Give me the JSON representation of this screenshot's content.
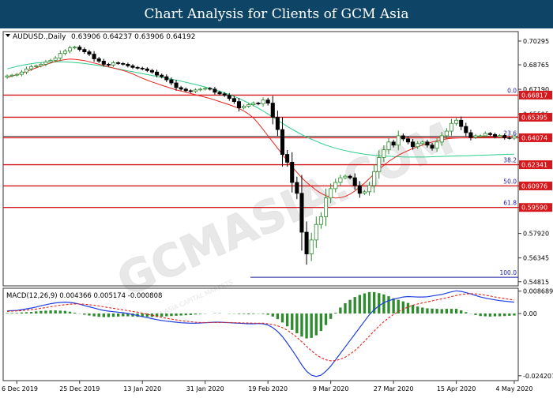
{
  "banner": {
    "title": "Chart Analysis for Clients of GCM Asia"
  },
  "watermark": {
    "text": "GCMASIA.COM",
    "subtext": "GCM ASIA CAPITAL MARKETS"
  },
  "chart_data": [
    {
      "type": "candlestick",
      "symbol_label": "AUDUSD.,Daily",
      "ohlc_label": "0.63906 0.64237 0.63906 0.64192",
      "ylim": [
        0.5465,
        0.708
      ],
      "y_ticks": [
        "0.70295",
        "0.68765",
        "0.67190",
        "0.65595",
        "0.64074",
        "0.62341",
        "0.60976",
        "0.59590",
        "0.57920",
        "0.56345",
        "0.54815"
      ],
      "x_ticks": [
        "6 Dec 2019",
        "25 Dec 2019",
        "13 Jan 2020",
        "31 Jan 2020",
        "19 Feb 2020",
        "9 Mar 2020",
        "27 Mar 2020",
        "15 Apr 2020",
        "4 May 2020"
      ],
      "n_bars": 106,
      "levels": [
        {
          "price": 0.66817,
          "label": "0.66817",
          "fib": "0.0"
        },
        {
          "price": 0.65395,
          "label": "0.65395",
          "fib": ""
        },
        {
          "price": 0.64074,
          "label": "0.64074",
          "fib": "23.6"
        },
        {
          "price": 0.62341,
          "label": "0.62341",
          "fib": "38.2"
        },
        {
          "price": 0.60976,
          "label": "0.60976",
          "fib": "50.0"
        },
        {
          "price": 0.5959,
          "label": "0.59590",
          "fib": "61.8"
        }
      ],
      "fib_100": {
        "price": 0.551,
        "label": "100.0"
      },
      "closes": [
        0.6805,
        0.681,
        0.6815,
        0.683,
        0.685,
        0.6865,
        0.687,
        0.688,
        0.6895,
        0.6905,
        0.692,
        0.695,
        0.6965,
        0.6985,
        0.699,
        0.6975,
        0.696,
        0.6945,
        0.6915,
        0.69,
        0.688,
        0.6875,
        0.689,
        0.6885,
        0.688,
        0.687,
        0.686,
        0.6855,
        0.685,
        0.684,
        0.683,
        0.681,
        0.68,
        0.678,
        0.676,
        0.673,
        0.672,
        0.671,
        0.6705,
        0.6715,
        0.672,
        0.6725,
        0.672,
        0.67,
        0.669,
        0.668,
        0.666,
        0.664,
        0.66,
        0.661,
        0.662,
        0.663,
        0.6625,
        0.665,
        0.663,
        0.654,
        0.646,
        0.63,
        0.625,
        0.612,
        0.605,
        0.58,
        0.566,
        0.575,
        0.585,
        0.59,
        0.602,
        0.608,
        0.612,
        0.615,
        0.616,
        0.615,
        0.61,
        0.605,
        0.606,
        0.61,
        0.619,
        0.628,
        0.633,
        0.638,
        0.636,
        0.642,
        0.64,
        0.638,
        0.635,
        0.637,
        0.638,
        0.636,
        0.634,
        0.638,
        0.642,
        0.645,
        0.65,
        0.652,
        0.648,
        0.644,
        0.641,
        0.642,
        0.642,
        0.6435,
        0.6428,
        0.6415,
        0.6422,
        0.6408,
        0.6405,
        0.6419
      ],
      "ma_fast": [
        0.6795,
        0.6804,
        0.6812,
        0.6822,
        0.6834,
        0.6845,
        0.6857,
        0.6868,
        0.6878,
        0.6888,
        0.6898,
        0.6905,
        0.691,
        0.6914,
        0.6912,
        0.6908,
        0.6904,
        0.6896,
        0.6888,
        0.688,
        0.6872,
        0.6864,
        0.6856,
        0.6848,
        0.684,
        0.683,
        0.6818,
        0.6804,
        0.679,
        0.6778,
        0.6766,
        0.6756,
        0.6745,
        0.6735,
        0.6725,
        0.6715,
        0.6708,
        0.67,
        0.6692,
        0.6684,
        0.6676,
        0.6668,
        0.666,
        0.665,
        0.664,
        0.663,
        0.662,
        0.6608,
        0.6596,
        0.658,
        0.656,
        0.6535,
        0.65,
        0.646,
        0.642,
        0.638,
        0.634,
        0.63,
        0.626,
        0.622,
        0.6185,
        0.615,
        0.612,
        0.6095,
        0.607,
        0.605,
        0.6035,
        0.6025,
        0.602,
        0.6022,
        0.603,
        0.6045,
        0.6065,
        0.609,
        0.6115,
        0.6145,
        0.6175,
        0.6205,
        0.623,
        0.6255,
        0.6275,
        0.6295,
        0.631,
        0.6325,
        0.6338,
        0.635,
        0.636,
        0.637,
        0.638,
        0.6388,
        0.6395,
        0.64,
        0.6404,
        0.6406,
        0.6407,
        0.6408,
        0.6409,
        0.641,
        0.6411,
        0.6412,
        0.6413,
        0.6414,
        0.6415,
        0.6416,
        0.6417,
        0.6418
      ],
      "ma_slow": [
        0.685,
        0.6858,
        0.6866,
        0.6873,
        0.6879,
        0.6884,
        0.6888,
        0.6891,
        0.6893,
        0.6895,
        0.6896,
        0.6896,
        0.6895,
        0.6893,
        0.6891,
        0.6888,
        0.6885,
        0.6881,
        0.6877,
        0.6872,
        0.6867,
        0.6862,
        0.6856,
        0.685,
        0.6844,
        0.6838,
        0.6832,
        0.6826,
        0.682,
        0.6814,
        0.6808,
        0.6802,
        0.6796,
        0.679,
        0.6784,
        0.6778,
        0.6771,
        0.6764,
        0.6757,
        0.675,
        0.6742,
        0.6734,
        0.6725,
        0.6716,
        0.6706,
        0.6696,
        0.6685,
        0.6673,
        0.666,
        0.6646,
        0.6631,
        0.6615,
        0.6598,
        0.658,
        0.656,
        0.654,
        0.652,
        0.65,
        0.648,
        0.6462,
        0.6445,
        0.6428,
        0.6412,
        0.6398,
        0.6385,
        0.6372,
        0.636,
        0.635,
        0.634,
        0.6332,
        0.6325,
        0.6318,
        0.6312,
        0.6307,
        0.6302,
        0.6298,
        0.6295,
        0.6292,
        0.629,
        0.6288,
        0.6286,
        0.6285,
        0.6284,
        0.6283,
        0.6283,
        0.6283,
        0.6283,
        0.6284,
        0.6285,
        0.6286,
        0.6287,
        0.6288,
        0.6289,
        0.629,
        0.6291,
        0.6292,
        0.6293,
        0.6294,
        0.6295,
        0.6296,
        0.6297,
        0.6298,
        0.6299,
        0.63,
        0.6301,
        0.6302
      ],
      "ma_colors": {
        "fast": "#e8231a",
        "slow": "#2ecc8a"
      },
      "candle_colors": {
        "up": "#2e8b2e",
        "down": "#000000"
      }
    },
    {
      "type": "macd",
      "label": "MACD(12,26,9) 0.004366 0.005174 -0.000808",
      "ylim": [
        -0.0255,
        0.0092
      ],
      "y_ticks": [
        "0.008689",
        "0.00",
        "-0.024207"
      ],
      "macd": [
        0.001,
        0.0011,
        0.0012,
        0.0015,
        0.0018,
        0.0021,
        0.0025,
        0.003,
        0.0034,
        0.0038,
        0.0041,
        0.0043,
        0.0044,
        0.0043,
        0.004,
        0.0036,
        0.0031,
        0.0026,
        0.0021,
        0.0016,
        0.0012,
        0.0009,
        0.0007,
        0.0005,
        0.0003,
        0.0,
        -0.0004,
        -0.0008,
        -0.0012,
        -0.0016,
        -0.002,
        -0.0024,
        -0.0027,
        -0.003,
        -0.0032,
        -0.0034,
        -0.0036,
        -0.0037,
        -0.0038,
        -0.0038,
        -0.0037,
        -0.0036,
        -0.0035,
        -0.0034,
        -0.0034,
        -0.0035,
        -0.0036,
        -0.0037,
        -0.0038,
        -0.0039,
        -0.004,
        -0.004,
        -0.0039,
        -0.004,
        -0.0045,
        -0.0055,
        -0.007,
        -0.009,
        -0.0115,
        -0.0142,
        -0.017,
        -0.02,
        -0.0225,
        -0.024,
        -0.0245,
        -0.024,
        -0.0225,
        -0.0205,
        -0.018,
        -0.0155,
        -0.013,
        -0.0105,
        -0.008,
        -0.0055,
        -0.003,
        -0.0005,
        0.0015,
        0.003,
        0.0042,
        0.005,
        0.0055,
        0.006,
        0.0064,
        0.0066,
        0.0065,
        0.0064,
        0.0064,
        0.0065,
        0.0068,
        0.0071,
        0.0074,
        0.0079,
        0.0084,
        0.0088,
        0.0086,
        0.0081,
        0.0076,
        0.007,
        0.0064,
        0.006,
        0.0056,
        0.0053,
        0.005,
        0.0048,
        0.0046,
        0.0044
      ],
      "signal": [
        0.0008,
        0.0009,
        0.001,
        0.0011,
        0.0013,
        0.0015,
        0.0017,
        0.002,
        0.0023,
        0.0026,
        0.0029,
        0.0032,
        0.0034,
        0.0036,
        0.0037,
        0.0037,
        0.0036,
        0.0034,
        0.0032,
        0.0029,
        0.0026,
        0.0023,
        0.002,
        0.0017,
        0.0014,
        0.0011,
        0.0008,
        0.0005,
        0.0001,
        -0.0003,
        -0.0007,
        -0.0011,
        -0.0015,
        -0.0019,
        -0.0022,
        -0.0025,
        -0.0028,
        -0.003,
        -0.0032,
        -0.0034,
        -0.0035,
        -0.0035,
        -0.0035,
        -0.0035,
        -0.0035,
        -0.0035,
        -0.0035,
        -0.0036,
        -0.0036,
        -0.0037,
        -0.0037,
        -0.0038,
        -0.0038,
        -0.0038,
        -0.004,
        -0.0043,
        -0.0048,
        -0.0055,
        -0.0065,
        -0.0078,
        -0.0093,
        -0.011,
        -0.0128,
        -0.0145,
        -0.016,
        -0.0172,
        -0.018,
        -0.0184,
        -0.0183,
        -0.0178,
        -0.017,
        -0.0158,
        -0.0144,
        -0.0127,
        -0.0108,
        -0.0088,
        -0.0068,
        -0.0049,
        -0.0032,
        -0.0017,
        -0.0004,
        0.0007,
        0.0017,
        0.0025,
        0.0032,
        0.0037,
        0.0041,
        0.0045,
        0.0049,
        0.0053,
        0.0057,
        0.0061,
        0.0066,
        0.007,
        0.0074,
        0.0076,
        0.0077,
        0.0076,
        0.0074,
        0.0071,
        0.0068,
        0.0064,
        0.0061,
        0.0058,
        0.0055,
        0.0052
      ],
      "colors": {
        "macd": "#1f3fe0",
        "signal": "#e8231a",
        "hist": "#2e8b2e"
      }
    }
  ]
}
